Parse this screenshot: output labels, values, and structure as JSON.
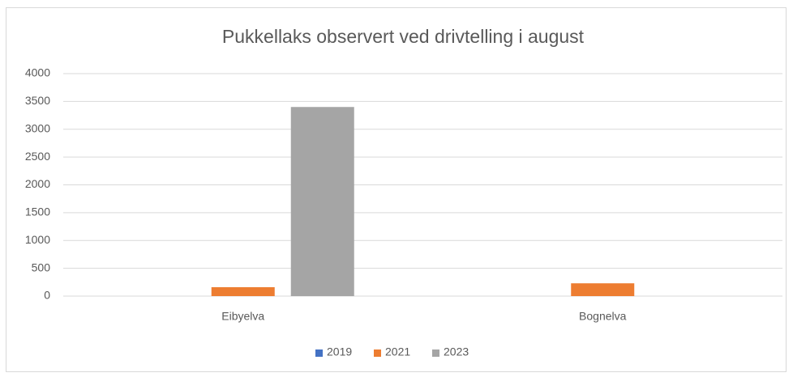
{
  "chart_data": {
    "type": "bar",
    "title": "Pukkellaks observert ved drivtelling i august",
    "categories": [
      "Eibyelva",
      "Bognelva"
    ],
    "series": [
      {
        "name": "2019",
        "color": "#4472c4",
        "values": [
          0,
          0
        ]
      },
      {
        "name": "2021",
        "color": "#ed7d31",
        "values": [
          160,
          230
        ]
      },
      {
        "name": "2023",
        "color": "#a5a5a5",
        "values": [
          3400,
          0
        ]
      }
    ],
    "ylim": [
      0,
      4000
    ],
    "yticks": [
      0,
      500,
      1000,
      1500,
      2000,
      2500,
      3000,
      3500,
      4000
    ],
    "grid": true,
    "legend": "bottom"
  }
}
